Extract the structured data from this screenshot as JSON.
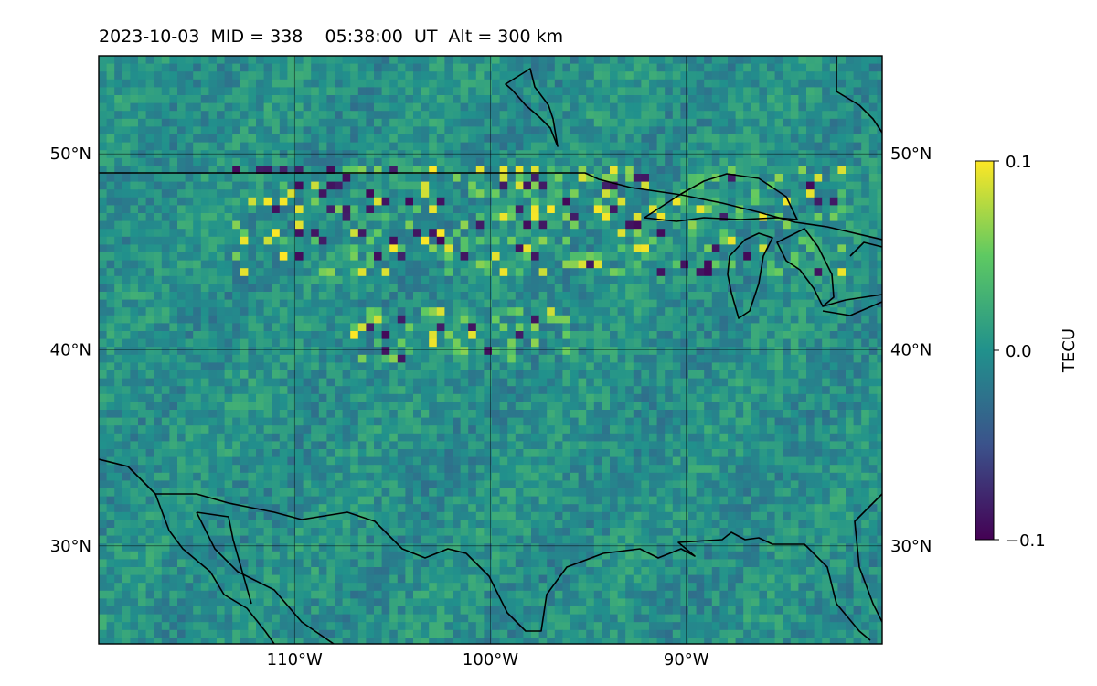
{
  "title": "2023-10-03  MID = 338    05:38:00  UT  Alt = 300 km",
  "chart_data": {
    "type": "heatmap",
    "projection": "plate-carree",
    "extent": {
      "lon": [
        -120,
        -80
      ],
      "lat": [
        25,
        55
      ]
    },
    "lon_ticks": [
      {
        "value": -110,
        "label": "110°W"
      },
      {
        "value": -100,
        "label": "100°W"
      },
      {
        "value": -90,
        "label": "90°W"
      }
    ],
    "lat_ticks": [
      {
        "value": 30,
        "label": "30°N"
      },
      {
        "value": 40,
        "label": "40°N"
      },
      {
        "value": 50,
        "label": "50°N"
      }
    ],
    "grid": true,
    "colormap": "viridis",
    "colorbar": {
      "label": "TECU",
      "vmin": -0.1,
      "vmax": 0.1,
      "ticks": [
        {
          "value": 0.1,
          "label": "0.1"
        },
        {
          "value": 0.0,
          "label": "0.0"
        },
        {
          "value": -0.1,
          "label": "−0.1"
        }
      ]
    },
    "coastlines": true,
    "borders": [
      "US–Canada border",
      "US–Mexico border"
    ]
  }
}
